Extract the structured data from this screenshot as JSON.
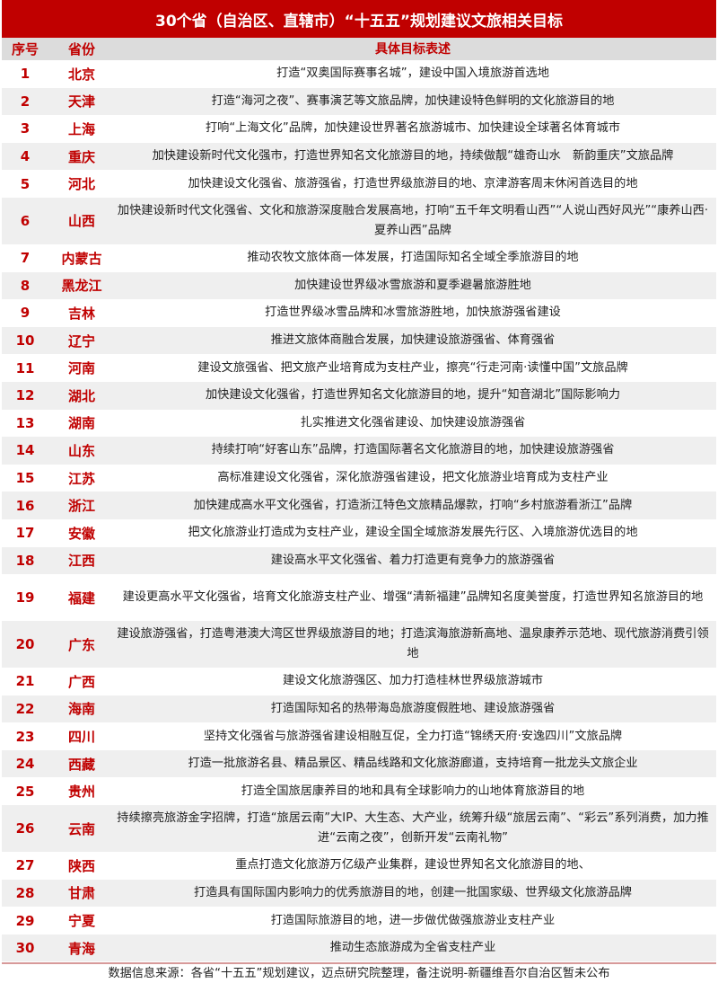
{
  "title": "30个省（自治区、直辖市）“十五五”规划建议文旅相关目标",
  "header": {
    "num": "序号",
    "province": "省份",
    "desc": "具体目标表述"
  },
  "rows": [
    {
      "num": "1",
      "province": "北京",
      "desc": "打造“双奥国际赛事名城”，建设中国入境旅游首选地"
    },
    {
      "num": "2",
      "province": "天津",
      "desc": "打造“海河之夜”、赛事演艺等文旅品牌，加快建设特色鲜明的文化旅游目的地"
    },
    {
      "num": "3",
      "province": "上海",
      "desc": "打响“上海文化”品牌，加快建设世界著名旅游城市、加快建设全球著名体育城市"
    },
    {
      "num": "4",
      "province": "重庆",
      "desc": "加快建设新时代文化强市，打造世界知名文化旅游目的地，持续做靓“雄奇山水　新韵重庆”文旅品牌"
    },
    {
      "num": "5",
      "province": "河北",
      "desc": "加快建设文化强省、旅游强省，打造世界级旅游目的地、京津游客周末休闲首选目的地"
    },
    {
      "num": "6",
      "province": "山西",
      "desc": "加快建设新时代文化强省、文化和旅游深度融合发展高地，打响“五千年文明看山西”“人说山西好风光”“康养山西·夏养山西”品牌"
    },
    {
      "num": "7",
      "province": "内蒙古",
      "desc": "推动农牧文旅体商一体发展，打造国际知名全域全季旅游目的地"
    },
    {
      "num": "8",
      "province": "黑龙江",
      "desc": "加快建设世界级冰雪旅游和夏季避暑旅游胜地"
    },
    {
      "num": "9",
      "province": "吉林",
      "desc": "打造世界级冰雪品牌和冰雪旅游胜地，加快旅游强省建设"
    },
    {
      "num": "10",
      "province": "辽宁",
      "desc": "推进文旅体商融合发展，加快建设旅游强省、体育强省"
    },
    {
      "num": "11",
      "province": "河南",
      "desc": "建设文旅强省、把文旅产业培育成为支柱产业，擦亮“行走河南·读懂中国”文旅品牌"
    },
    {
      "num": "12",
      "province": "湖北",
      "desc": "加快建设文化强省，打造世界知名文化旅游目的地，提升“知音湖北”国际影响力"
    },
    {
      "num": "13",
      "province": "湖南",
      "desc": "扎实推进文化强省建设、加快建设旅游强省"
    },
    {
      "num": "14",
      "province": "山东",
      "desc": "持续打响“好客山东”品牌，打造国际著名文化旅游目的地，加快建设旅游强省"
    },
    {
      "num": "15",
      "province": "江苏",
      "desc": "高标准建设文化强省，深化旅游强省建设，把文化旅游业培育成为支柱产业"
    },
    {
      "num": "16",
      "province": "浙江",
      "desc": "加快建成高水平文化强省，打造浙江特色文旅精品爆款，打响“乡村旅游看浙江”品牌"
    },
    {
      "num": "17",
      "province": "安徽",
      "desc": "把文化旅游业打造成为支柱产业，建设全国全域旅游发展先行区、入境旅游优选目的地"
    },
    {
      "num": "18",
      "province": "江西",
      "desc": "建设高水平文化强省、着力打造更有竞争力的旅游强省"
    },
    {
      "num": "19",
      "province": "福建",
      "desc": "建设更高水平文化强省，培育文化旅游支柱产业、增强“清新福建”品牌知名度美誉度，打造世界知名旅游目的地"
    },
    {
      "num": "20",
      "province": "广东",
      "desc": "建设旅游强省，打造粤港澳大湾区世界级旅游目的地；打造滨海旅游新高地、温泉康养示范地、现代旅游消费引领地"
    },
    {
      "num": "21",
      "province": "广西",
      "desc": "建设文化旅游强区、加力打造桂林世界级旅游城市"
    },
    {
      "num": "22",
      "province": "海南",
      "desc": "打造国际知名的热带海岛旅游度假胜地、建设旅游强省"
    },
    {
      "num": "23",
      "province": "四川",
      "desc": "坚持文化强省与旅游强省建设相融互促，全力打造“锦绣天府·安逸四川”文旅品牌"
    },
    {
      "num": "24",
      "province": "西藏",
      "desc": "打造一批旅游名县、精品景区、精品线路和文化旅游廊道，支持培育一批龙头文旅企业"
    },
    {
      "num": "25",
      "province": "贵州",
      "desc": "打造全国旅居康养目的地和具有全球影响力的山地体育旅游目的地"
    },
    {
      "num": "26",
      "province": "云南",
      "desc": "持续擦亮旅游金字招牌，打造“旅居云南”大IP、大生态、大产业，统筹升级“旅居云南”、“彩云”系列消费，加力推进“云南之夜”，创新开发“云南礼物”"
    },
    {
      "num": "27",
      "province": "陕西",
      "desc": "重点打造文化旅游万亿级产业集群，建设世界知名文化旅游目的地、"
    },
    {
      "num": "28",
      "province": "甘肃",
      "desc": "打造具有国际国内影响力的优秀旅游目的地，创建一批国家级、世界级文化旅游品牌"
    },
    {
      "num": "29",
      "province": "宁夏",
      "desc": "打造国际旅游目的地，进一步做优做强旅游业支柱产业"
    },
    {
      "num": "30",
      "province": "青海",
      "desc": "推动生态旅游成为全省支柱产业"
    }
  ],
  "footer": "数据信息来源：各省“十五五”规划建议，迈点研究院整理，备注说明-新疆维吾尔自治区暂未公布",
  "colors": {
    "accent": "#c00000",
    "stripe": "#efefef",
    "header_bg": "#dcdcdc"
  }
}
